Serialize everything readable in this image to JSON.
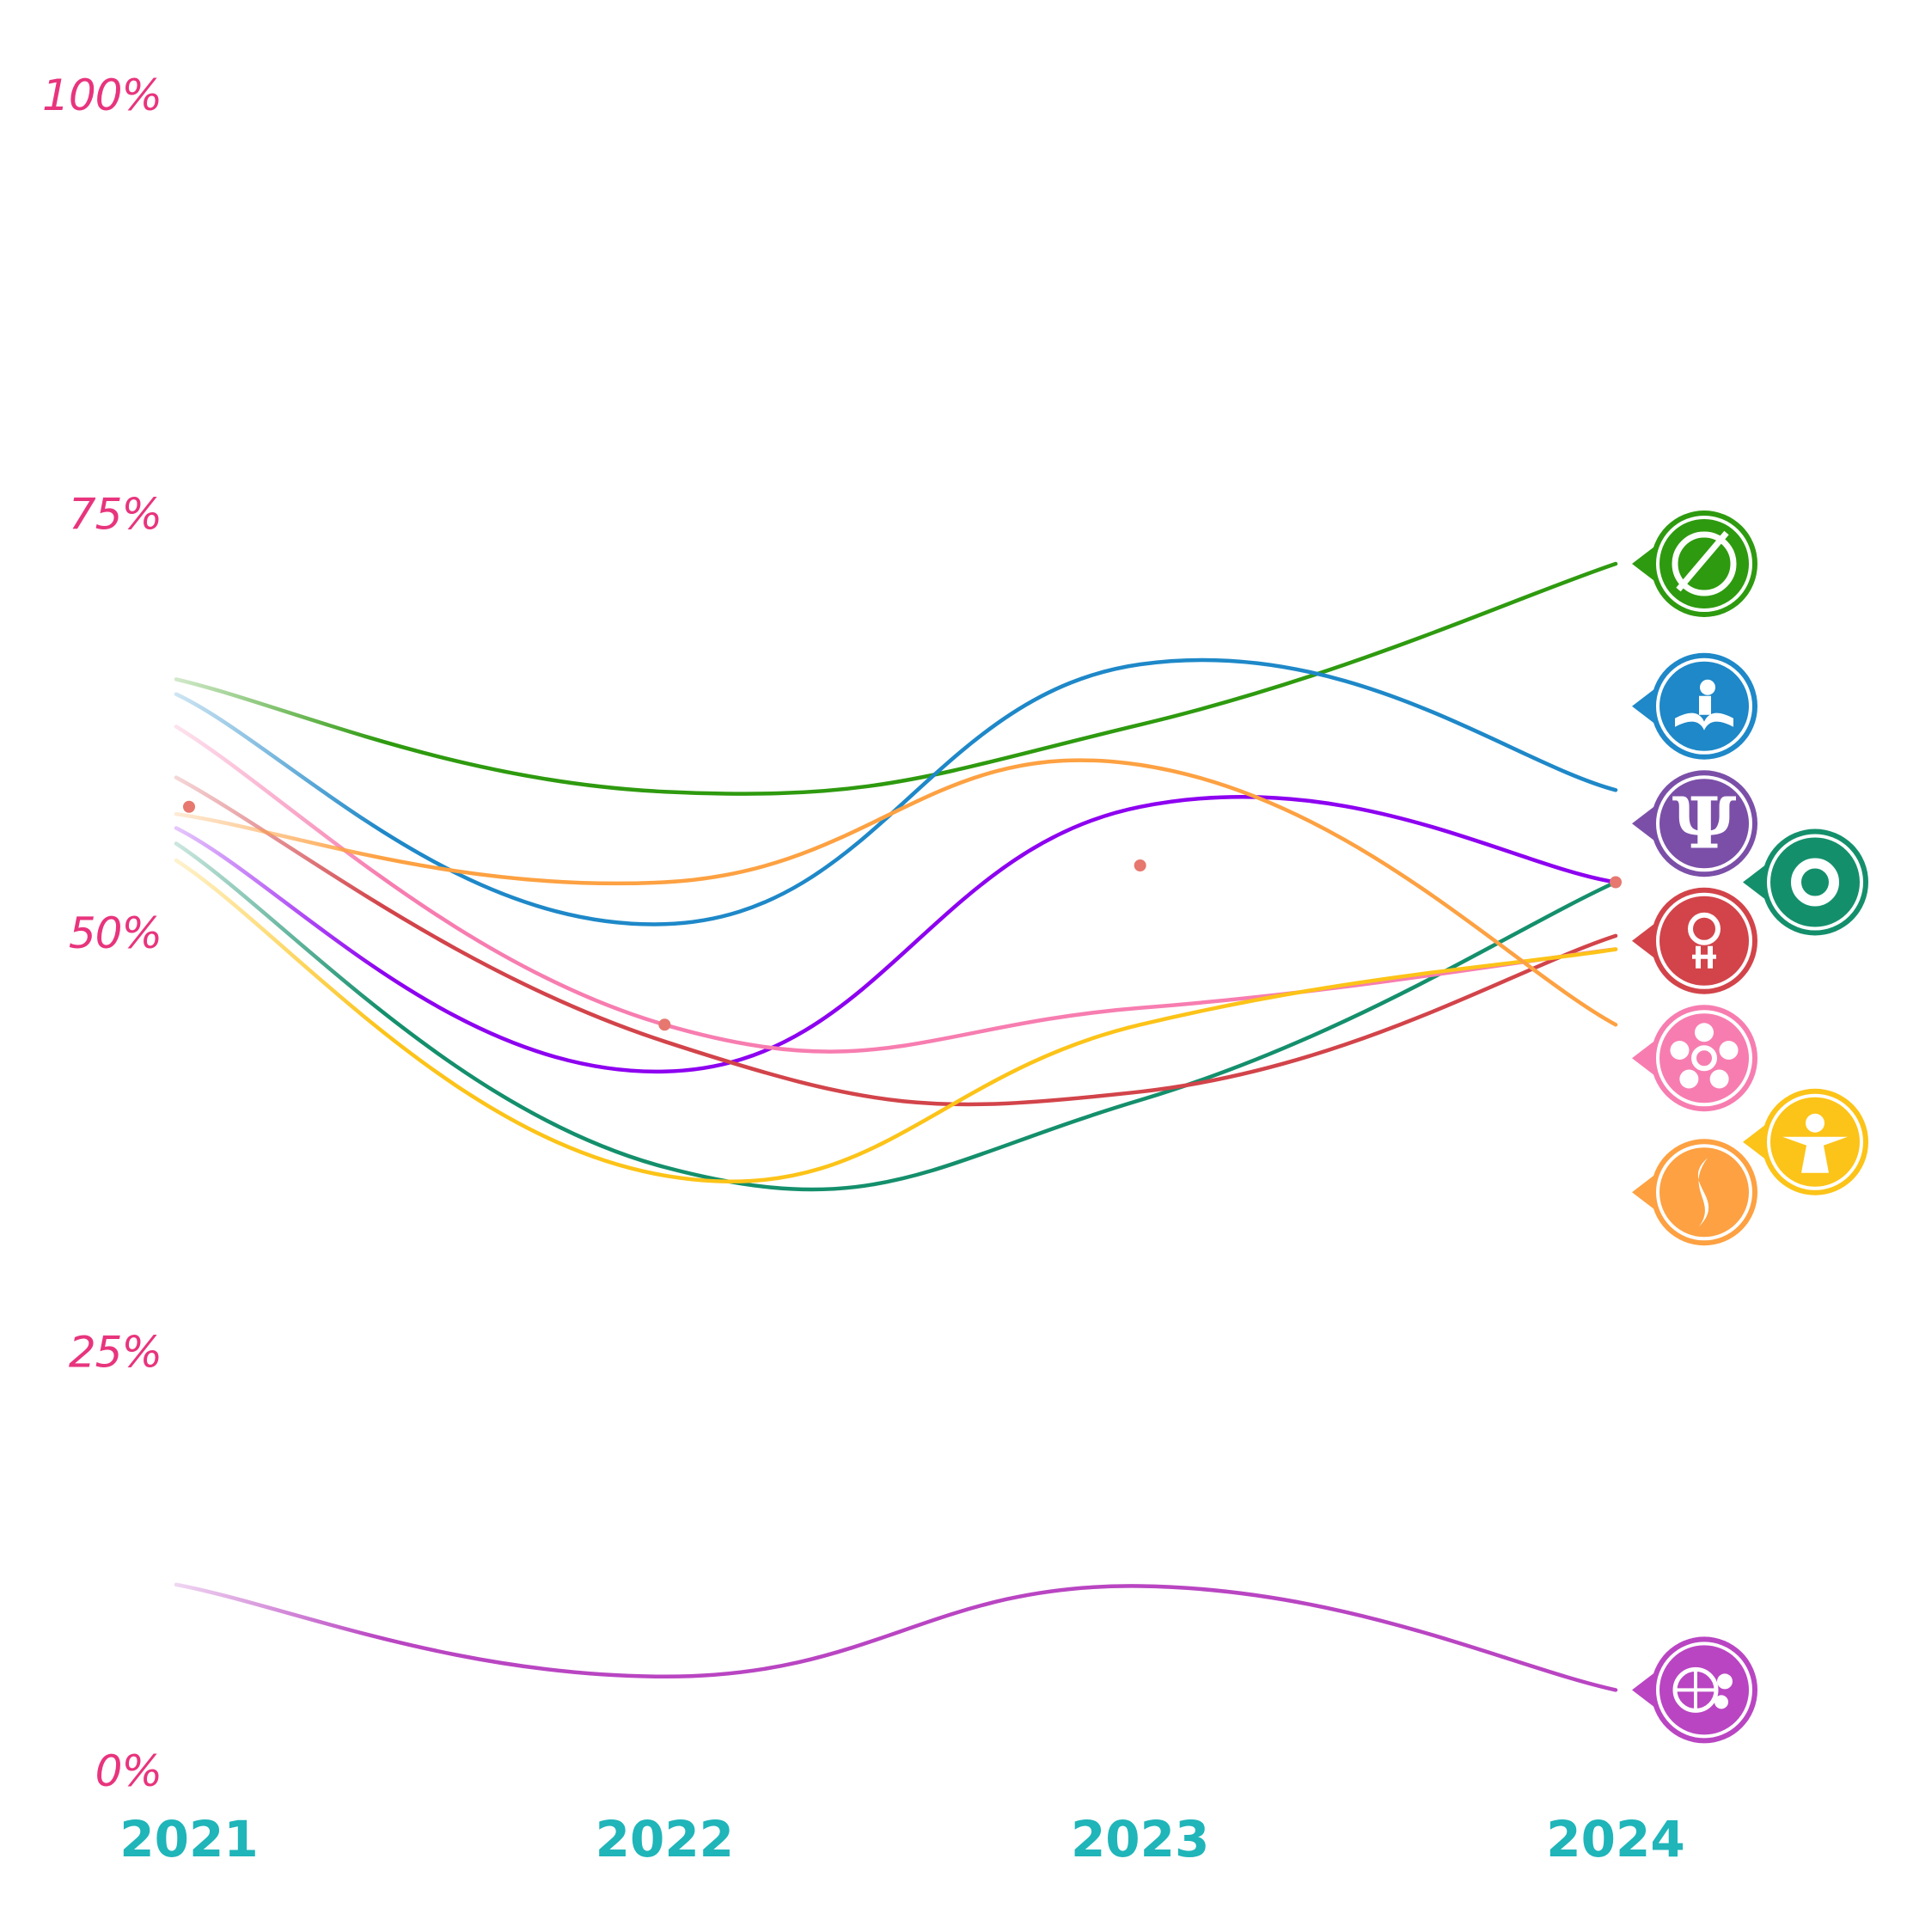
{
  "chart_data": {
    "type": "line",
    "x": [
      "2021",
      "2022",
      "2023",
      "2024"
    ],
    "y_ticks": [
      "0%",
      "25%",
      "50%",
      "75%",
      "100%"
    ],
    "ylim": [
      0,
      100
    ],
    "title": "",
    "xlabel": "",
    "ylabel": "",
    "grid": false,
    "legend": "icon badges at line ends (right)",
    "colors": {
      "y_tick_label": "#e8347d",
      "x_tick_label": "#1fb5b9",
      "marker_dot": "#e6786f"
    },
    "series": [
      {
        "icon": "circle-arc-symbol-icon",
        "color": "#2e9a0f",
        "values": [
          65,
          58.4,
          62.4,
          72
        ],
        "badge_value": 72,
        "badge_side": "left"
      },
      {
        "icon": "reading-person-book-icon",
        "color": "#1e88c8",
        "values": [
          64,
          50.5,
          66,
          58.5
        ],
        "badge_value": 63.5,
        "badge_side": "left"
      },
      {
        "icon": "psi-symbol-icon",
        "color": "#7b4fa8",
        "line_color": "#8d00f0",
        "values": [
          56,
          41.7,
          57.5,
          53
        ],
        "badge_value": 56.5,
        "badge_side": "left"
      },
      {
        "icon": "spiral-circle-icon",
        "color": "#148f6c",
        "values": [
          55,
          36,
          40,
          53
        ],
        "badge_value": 53,
        "badge_side": "right-outer"
      },
      {
        "icon": "pt-monogram-icon",
        "color": "#d2444a",
        "values": [
          59,
          43.5,
          40.5,
          49.8
        ],
        "badge_value": 49.5,
        "badge_side": "left"
      },
      {
        "icon": "people-circle-icon",
        "color": "#f77db0",
        "values": [
          62,
          44.5,
          45.5,
          49
        ],
        "badge_value": 42.5,
        "badge_side": "left"
      },
      {
        "icon": "person-arms-out-icon",
        "color": "#fcc318",
        "values": [
          54,
          35.5,
          44.5,
          49
        ],
        "badge_value": 37.5,
        "badge_side": "right-outer"
      },
      {
        "icon": "flame-swirl-icon",
        "color": "#fda142",
        "values": [
          57,
          53,
          60,
          44.5
        ],
        "badge_value": 34.5,
        "badge_side": "left"
      },
      {
        "icon": "globe-people-icon",
        "color": "#b945c2",
        "values": [
          11,
          5.6,
          11,
          4.8
        ],
        "badge_value": 4.8,
        "badge_side": "left"
      }
    ],
    "markers": [
      {
        "x": "2021",
        "y": 57.5
      },
      {
        "x": "2022",
        "y": 44.5
      },
      {
        "x": "2023",
        "y": 54
      },
      {
        "x": "2024",
        "y": 53
      }
    ]
  }
}
